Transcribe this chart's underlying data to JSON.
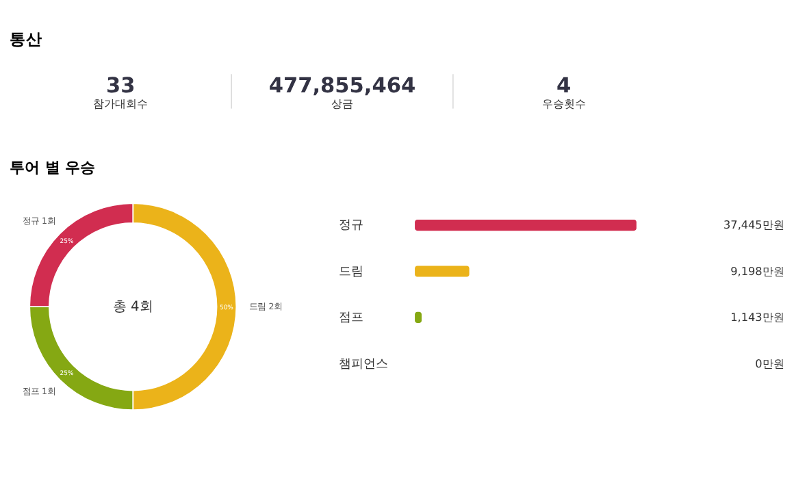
{
  "chart_data": [
    {
      "type": "other",
      "title": "통산",
      "categories": [
        "참가대회수",
        "상금",
        "우승횟수"
      ],
      "value_labels": [
        "33",
        "477,855,464",
        "4"
      ]
    },
    {
      "type": "donut",
      "title": "투어 별 우승",
      "categories": [
        "드림 2회",
        "점프 1회",
        "정규 1회"
      ],
      "values": [
        50,
        25,
        25
      ],
      "colors": [
        "#ebb31a",
        "#85a813",
        "#d12d50"
      ],
      "value_labels": [
        "50%",
        "25%",
        "25%"
      ],
      "annotations": [
        "총 4회"
      ]
    },
    {
      "type": "bar",
      "orientation": "horizontal",
      "categories": [
        "정규",
        "드림",
        "점프",
        "챔피언스"
      ],
      "values": [
        37445,
        9198,
        1143,
        0
      ],
      "colors": [
        "#d12d50",
        "#ebb31a",
        "#85a813",
        "#85a813"
      ],
      "value_labels": [
        "37,445만원",
        "9,198만원",
        "1,143만원",
        "0만원"
      ],
      "tick_labels": "y"
    }
  ]
}
